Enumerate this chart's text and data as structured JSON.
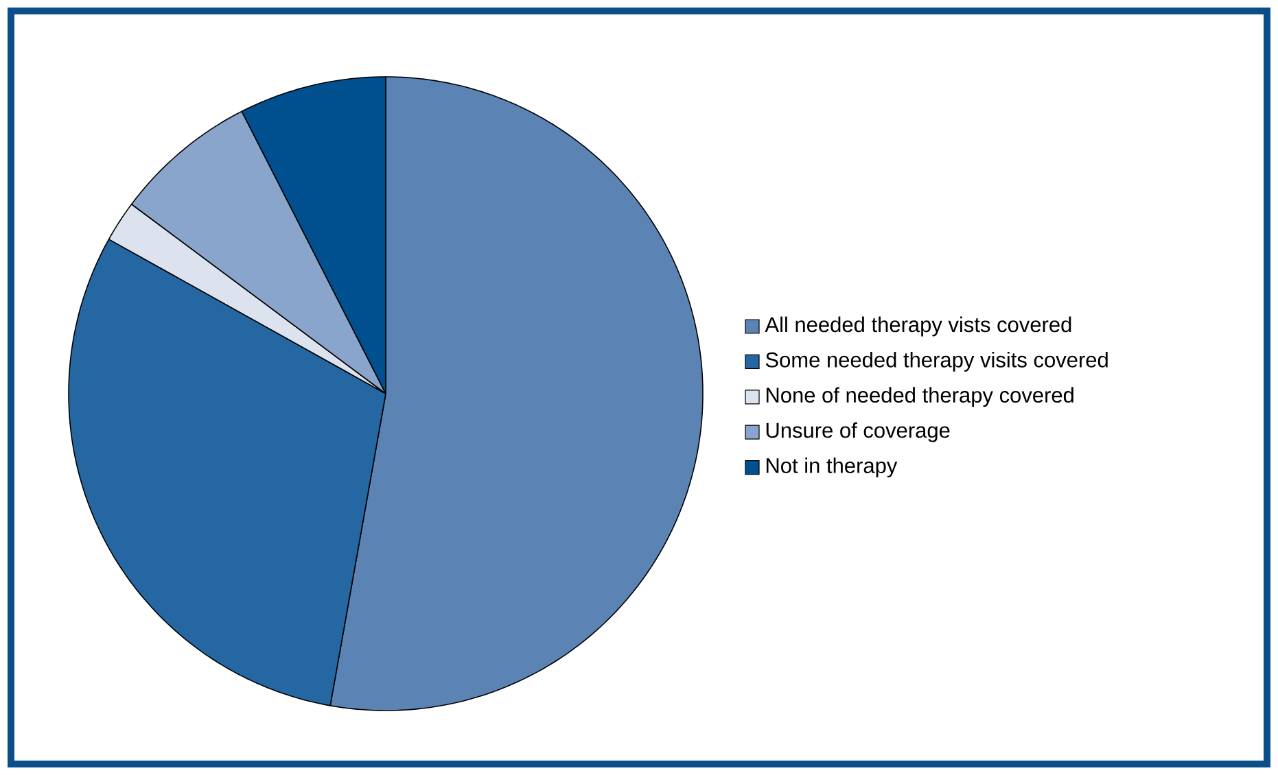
{
  "chart_data": {
    "type": "pie",
    "categories": [
      "All needed therapy vists covered",
      "Some needed therapy visits covered",
      "None of needed therapy covered",
      "Unsure of coverage",
      "Not in therapy"
    ],
    "values": [
      52.8,
      30.3,
      2.1,
      7.3,
      7.5
    ],
    "colors": [
      "#5b84b5",
      "#2567a3",
      "#dde3ee",
      "#8aa5cc",
      "#00508f"
    ],
    "legend": "right"
  }
}
